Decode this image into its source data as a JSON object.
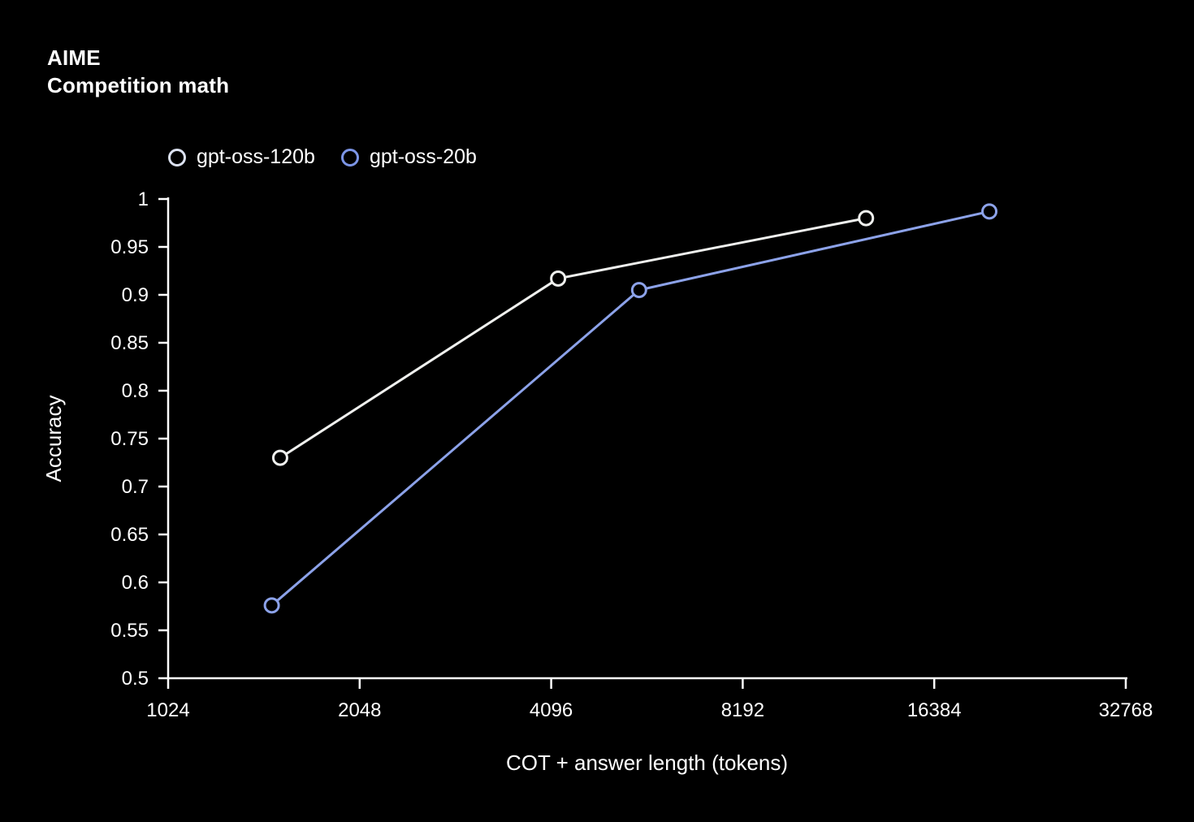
{
  "title": "AIME",
  "subtitle": "Competition math",
  "colors": {
    "background": "#000000",
    "axis": "#ffffff",
    "text": "#ffffff",
    "series_gpt_oss_120b": "#eff0ee",
    "series_gpt_oss_20b": "#8ca2e9",
    "legend_marker_gpt_oss_120b": "#dce2f1",
    "legend_marker_gpt_oss_20b": "#7c95e6",
    "marker_fill": "#000000"
  },
  "legend": {
    "items": [
      {
        "label": "gpt-oss-120b",
        "marker_color": "#dce2f1"
      },
      {
        "label": "gpt-oss-20b",
        "marker_color": "#7c95e6"
      }
    ]
  },
  "chart_data": {
    "type": "line",
    "title": "AIME — Competition math",
    "xlabel": "COT + answer length (tokens)",
    "ylabel": "Accuracy",
    "x_scale": "log2",
    "xlim": [
      1024,
      32768
    ],
    "ylim": [
      0.5,
      1.0
    ],
    "x_ticks": [
      1024,
      2048,
      4096,
      8192,
      16384,
      32768
    ],
    "y_ticks": [
      1,
      0.95,
      0.9,
      0.85,
      0.8,
      0.75,
      0.7,
      0.65,
      0.6,
      0.55,
      0.5
    ],
    "grid": false,
    "legend_position": "top-left",
    "series": [
      {
        "name": "gpt-oss-120b",
        "color": "#eff0ee",
        "points": [
          [
            1536,
            0.73
          ],
          [
            4200,
            0.917
          ],
          [
            12800,
            0.98
          ]
        ]
      },
      {
        "name": "gpt-oss-20b",
        "color": "#8ca2e9",
        "points": [
          [
            1490,
            0.576
          ],
          [
            5630,
            0.905
          ],
          [
            20000,
            0.987
          ]
        ]
      }
    ]
  }
}
